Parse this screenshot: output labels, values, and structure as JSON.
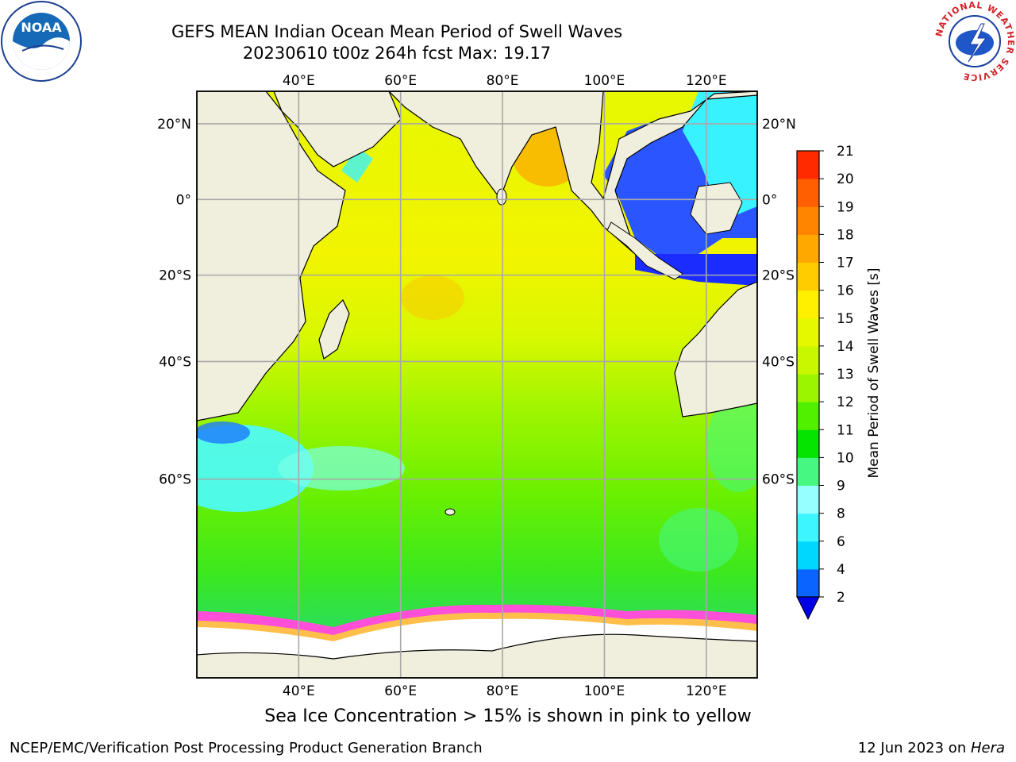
{
  "header": {
    "title_line1": "GEFS MEAN Indian Ocean Mean Period of Swell Waves",
    "title_line2": "20230610 t00z 264h fcst   Max: 19.17"
  },
  "logos": {
    "left": "NOAA",
    "right_ring": "NATIONAL WEATHER SERVICE"
  },
  "map": {
    "lon_labels": [
      "40°E",
      "60°E",
      "80°E",
      "100°E",
      "120°E"
    ],
    "lat_labels": [
      "20°N",
      "0°",
      "20°S",
      "40°S",
      "60°S"
    ],
    "lon_values": [
      40,
      60,
      80,
      100,
      120
    ],
    "lat_values": [
      20,
      0,
      -20,
      -40,
      -60
    ],
    "extent": {
      "lon_min": 20,
      "lon_max": 130,
      "lat_min": -78,
      "lat_max": 28
    }
  },
  "colorbar": {
    "label": "Mean Period of Swell Waves [s]",
    "ticks": [
      "2",
      "4",
      "6",
      "8",
      "9",
      "10",
      "11",
      "12",
      "13",
      "14",
      "15",
      "16",
      "17",
      "18",
      "19",
      "20",
      "21"
    ],
    "colors": [
      "#0a64ff",
      "#00d7ff",
      "#3cf5ff",
      "#96ffff",
      "#46f882",
      "#05e400",
      "#50f000",
      "#9cf500",
      "#c8f700",
      "#e6f800",
      "#fff000",
      "#ffcc00",
      "#ffa800",
      "#ff8400",
      "#ff5f00",
      "#ff2a00"
    ],
    "under_color": "#0000e6"
  },
  "footer": {
    "note": "Sea Ice Concentration > 15% is shown in pink to yellow",
    "credit": "NCEP/EMC/Verification Post Processing Product Generation Branch",
    "date": "12 Jun 2023 on ",
    "host": "Hera"
  }
}
